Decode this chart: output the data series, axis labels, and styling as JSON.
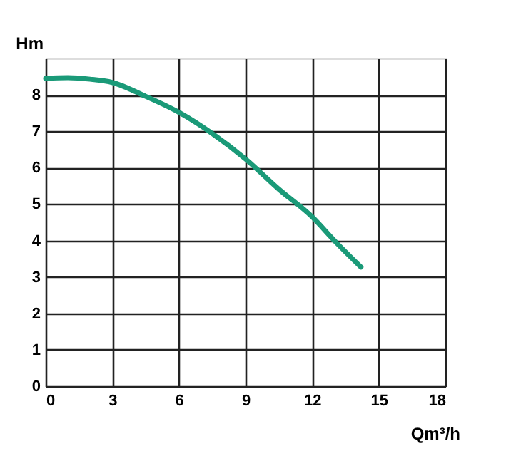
{
  "chart_data": {
    "type": "line",
    "xlabel": "Qm³/h",
    "ylabel": "Hm",
    "x": [
      0,
      1,
      2,
      3,
      4.5,
      6,
      7.5,
      9,
      10.5,
      12,
      13,
      14.2
    ],
    "series": [
      {
        "color": "#1a9a78",
        "values": [
          8.45,
          8.47,
          8.43,
          8.34,
          7.96,
          7.52,
          6.94,
          6.24,
          5.41,
          4.65,
          4.0,
          3.27
        ]
      }
    ],
    "xlim": [
      0,
      18
    ],
    "xticks": [
      0,
      3,
      6,
      9,
      12,
      15,
      18
    ],
    "ylim": [
      0,
      9
    ],
    "yticks": [
      0,
      1,
      2,
      3,
      4,
      5,
      6,
      7,
      8
    ],
    "grid": true,
    "marker": "none",
    "line_style": "solid"
  }
}
